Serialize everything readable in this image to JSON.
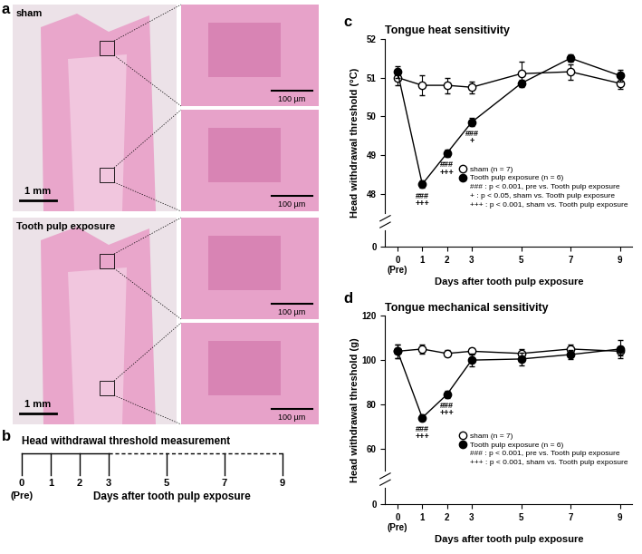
{
  "chart_data": [
    {
      "label": "c",
      "type": "line",
      "title": "Tongue heat sensitivity",
      "x_label": "Days after tooth pulp exposure",
      "y_label": "Head withdrawal threshold (°C)",
      "x": [
        0,
        1,
        2,
        3,
        5,
        7,
        9
      ],
      "xlim": [
        -0.5,
        9.5
      ],
      "xticks": [
        {
          "value": 0,
          "label": "0\n(Pre)"
        },
        1,
        2,
        3,
        5,
        7,
        9
      ],
      "ylim": [
        0,
        52
      ],
      "yticks": [
        0,
        48,
        49,
        50,
        51,
        52
      ],
      "series": [
        {
          "name": "sham (n = 7)",
          "color": "#ffffff",
          "marker": "circle",
          "line_style": "solid",
          "values": [
            51.0,
            50.8,
            50.8,
            50.75,
            51.1,
            51.15,
            50.85
          ],
          "errors": [
            0.2,
            0.25,
            0.2,
            0.15,
            0.3,
            0.2,
            0.15
          ]
        },
        {
          "name": "Tooth pulp exposure (n = 6)",
          "color": "#000000",
          "marker": "circle",
          "line_style": "solid",
          "values": [
            51.15,
            48.25,
            49.05,
            49.85,
            50.85,
            51.5,
            51.05
          ],
          "errors": [
            0.15,
            0.1,
            0.1,
            0.1,
            0.1,
            0.1,
            0.15
          ]
        }
      ],
      "annotations": [
        {
          "x": 1,
          "text": "###\n+++"
        },
        {
          "x": 2,
          "text": "###\n+++"
        },
        {
          "x": 3,
          "text": "###\n+"
        }
      ],
      "notes": [
        "### : p < 0.001, pre vs. Tooth pulp exposure",
        "+ : p < 0.05, sham vs. Tooth pulp exposure",
        "+++ : p < 0.001, sham vs. Tooth pulp exposure"
      ],
      "legend": "lower right"
    },
    {
      "label": "d",
      "type": "line",
      "title": "Tongue mechanical sensitivity",
      "x_label": "Days after tooth pulp exposure",
      "y_label": "Head withdrawal threshold (g)",
      "x": [
        0,
        1,
        2,
        3,
        5,
        7,
        9
      ],
      "xlim": [
        -0.5,
        9.5
      ],
      "xticks": [
        {
          "value": 0,
          "label": "0\n(Pre)"
        },
        1,
        2,
        3,
        5,
        7,
        9
      ],
      "ylim": [
        0,
        120
      ],
      "yticks": [
        0,
        60,
        80,
        100,
        120
      ],
      "series": [
        {
          "name": "sham (n = 7)",
          "color": "#ffffff",
          "marker": "circle",
          "line_style": "solid",
          "values": [
            104,
            105,
            103,
            104,
            103,
            105,
            104
          ],
          "errors": [
            3,
            2,
            1.5,
            1.5,
            2,
            2,
            2
          ]
        },
        {
          "name": "Tooth pulp exposure (n = 6)",
          "color": "#000000",
          "marker": "circle",
          "line_style": "solid",
          "values": [
            104,
            74,
            84.5,
            100,
            100.5,
            102.5,
            105
          ],
          "errors": [
            3,
            1.5,
            1.5,
            3,
            3,
            2,
            4
          ]
        }
      ],
      "annotations": [
        {
          "x": 1,
          "text": "###\n+++"
        },
        {
          "x": 2,
          "text": "###\n+++"
        }
      ],
      "notes": [
        "### : p < 0.001, pre vs. Tooth pulp exposure",
        "+++ : p < 0.001, sham vs. Tooth pulp exposure"
      ],
      "legend": "lower right"
    }
  ],
  "panel_a": {
    "label": "a",
    "images": [
      {
        "caption": "sham",
        "scale_bar": "1 mm",
        "inset_scale_bars": [
          "100 µm",
          "100 µm"
        ]
      },
      {
        "caption": "Tooth pulp exposure",
        "scale_bar": "1 mm",
        "inset_scale_bars": [
          "100 µm",
          "100 µm"
        ]
      }
    ]
  },
  "panel_b": {
    "label": "b",
    "title": "Head withdrawal threshold measurement",
    "days": [
      0,
      1,
      2,
      3,
      5,
      7,
      9
    ],
    "pre_label": "(Pre)",
    "x_label": "Days after tooth pulp exposure"
  }
}
